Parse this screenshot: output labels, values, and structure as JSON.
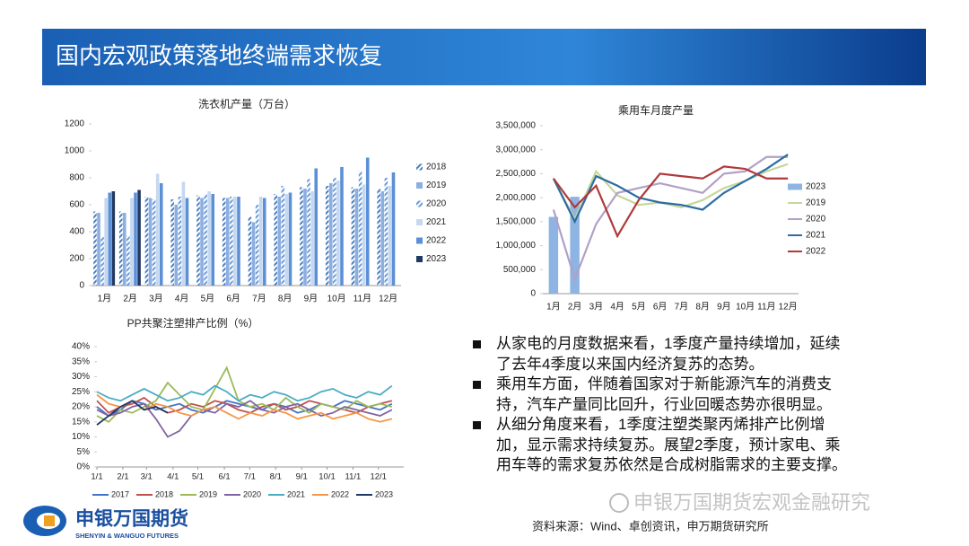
{
  "header": {
    "title": "国内宏观政策落地终端需求恢复"
  },
  "chart_data": [
    {
      "type": "bar",
      "title": "洗衣机产量（万台）",
      "categories": [
        "1月",
        "2月",
        "3月",
        "4月",
        "5月",
        "6月",
        "7月",
        "8月",
        "9月",
        "10月",
        "11月",
        "12月"
      ],
      "series": [
        {
          "name": "2018",
          "color": "#4a7fc0",
          "pattern": "hatch",
          "values": [
            550,
            550,
            660,
            640,
            670,
            650,
            510,
            680,
            730,
            740,
            730,
            720
          ]
        },
        {
          "name": "2019",
          "color": "#8eaee0",
          "values": [
            540,
            540,
            650,
            600,
            650,
            650,
            470,
            660,
            720,
            760,
            720,
            700
          ]
        },
        {
          "name": "2020",
          "color": "#6a9bd8",
          "pattern": "hatch",
          "values": [
            360,
            370,
            640,
            660,
            680,
            660,
            600,
            740,
            790,
            800,
            850,
            800
          ]
        },
        {
          "name": "2021",
          "color": "#c5d8f0",
          "values": [
            650,
            650,
            830,
            770,
            700,
            660,
            660,
            680,
            700,
            780,
            750,
            740
          ]
        },
        {
          "name": "2022",
          "color": "#5b8fd6",
          "values": [
            690,
            690,
            760,
            650,
            680,
            660,
            650,
            690,
            870,
            880,
            950,
            840
          ]
        },
        {
          "name": "2023",
          "color": "#1f3864",
          "values": [
            700,
            710,
            null,
            null,
            null,
            null,
            null,
            null,
            null,
            null,
            null,
            null
          ]
        }
      ],
      "ylim": [
        0,
        1200
      ],
      "yticks": [
        0,
        200,
        400,
        600,
        800,
        1000,
        1200
      ],
      "grid": false,
      "legend": "right"
    },
    {
      "type": "combo",
      "title": "乘用车月度产量",
      "categories": [
        "1月",
        "2月",
        "3月",
        "4月",
        "5月",
        "6月",
        "7月",
        "8月",
        "9月",
        "10月",
        "11月",
        "12月"
      ],
      "series": [
        {
          "name": "2023",
          "kind": "bar",
          "color": "#8db4e2",
          "values": [
            1600000,
            2020000,
            null,
            null,
            null,
            null,
            null,
            null,
            null,
            null,
            null,
            null
          ]
        },
        {
          "name": "2019",
          "kind": "line",
          "color": "#c4d79b",
          "values": [
            2400000,
            1550000,
            2550000,
            2050000,
            1850000,
            1900000,
            1800000,
            1950000,
            2200000,
            2350000,
            2550000,
            2700000
          ]
        },
        {
          "name": "2020",
          "kind": "line",
          "color": "#b1a0c7",
          "values": [
            1750000,
            300000,
            1450000,
            2100000,
            2200000,
            2300000,
            2200000,
            2100000,
            2500000,
            2550000,
            2850000,
            2850000
          ]
        },
        {
          "name": "2021",
          "kind": "line",
          "color": "#2e6ca4",
          "values": [
            2400000,
            1500000,
            2450000,
            2250000,
            2000000,
            1900000,
            1850000,
            1750000,
            2100000,
            2350000,
            2600000,
            2900000
          ]
        },
        {
          "name": "2022",
          "kind": "line",
          "color": "#b03a3a",
          "values": [
            2400000,
            1800000,
            2250000,
            1200000,
            1950000,
            2500000,
            2450000,
            2400000,
            2650000,
            2600000,
            2400000,
            2400000
          ]
        }
      ],
      "ylim": [
        0,
        3500000
      ],
      "yticks": [
        {
          "value": 0,
          "label": "0"
        },
        {
          "value": 500000,
          "label": "500,000"
        },
        {
          "value": 1000000,
          "label": "1,000,000"
        },
        {
          "value": 1500000,
          "label": "1,500,000"
        },
        {
          "value": 2000000,
          "label": "2,000,000"
        },
        {
          "value": 2500000,
          "label": "2,500,000"
        },
        {
          "value": 3000000,
          "label": "3,000,000"
        },
        {
          "value": 3500000,
          "label": "3,500,000"
        }
      ],
      "grid": false,
      "legend": "right"
    },
    {
      "type": "line",
      "title": "PP共聚注塑排产比例（%）",
      "x": [
        1,
        3,
        5,
        7,
        9,
        11,
        13,
        15,
        17,
        19,
        21,
        23,
        25,
        27,
        29,
        31,
        33,
        35,
        37,
        39,
        41,
        43,
        45,
        47,
        49,
        51
      ],
      "series": [
        {
          "name": "2017",
          "color": "#4472c4",
          "values": [
            20,
            17,
            19,
            22,
            21,
            19,
            20,
            21,
            19,
            18,
            20,
            22,
            21,
            20,
            19,
            21,
            20,
            18,
            19,
            21,
            20,
            22,
            21,
            20,
            19,
            21
          ]
        },
        {
          "name": "2018",
          "color": "#c0504d",
          "values": [
            22,
            18,
            20,
            21,
            23,
            20,
            18,
            19,
            21,
            20,
            22,
            21,
            19,
            18,
            20,
            21,
            19,
            20,
            22,
            21,
            20,
            19,
            18,
            20,
            21,
            22
          ]
        },
        {
          "name": "2019",
          "color": "#9bbb59",
          "values": [
            17,
            15,
            19,
            18,
            20,
            22,
            28,
            24,
            20,
            19,
            26,
            33,
            22,
            20,
            21,
            19,
            23,
            20,
            18,
            21,
            20,
            19,
            22,
            20,
            21,
            20
          ]
        },
        {
          "name": "2020",
          "color": "#8064a2",
          "values": [
            19,
            17,
            18,
            20,
            21,
            16,
            10,
            12,
            17,
            19,
            18,
            21,
            20,
            22,
            19,
            18,
            20,
            21,
            19,
            17,
            18,
            20,
            19,
            18,
            17,
            19
          ]
        },
        {
          "name": "2021",
          "color": "#4bacc6",
          "values": [
            25,
            23,
            22,
            24,
            26,
            24,
            22,
            23,
            25,
            24,
            27,
            25,
            22,
            24,
            23,
            25,
            24,
            22,
            23,
            25,
            26,
            24,
            23,
            25,
            24,
            27
          ]
        },
        {
          "name": "2022",
          "color": "#f79646",
          "values": [
            24,
            21,
            20,
            22,
            19,
            21,
            20,
            18,
            17,
            19,
            20,
            18,
            16,
            18,
            17,
            19,
            18,
            16,
            17,
            18,
            16,
            17,
            18,
            16,
            15,
            16
          ]
        },
        {
          "name": "2023",
          "color": "#1f3864",
          "values": [
            14,
            17,
            20,
            22,
            19,
            20,
            18,
            null,
            null,
            null,
            null,
            null,
            null,
            null,
            null,
            null,
            null,
            null,
            null,
            null,
            null,
            null,
            null,
            null,
            null,
            null
          ]
        }
      ],
      "xlim": [
        1,
        53
      ],
      "xticks": [
        {
          "value": 1,
          "label": "1/1"
        },
        {
          "value": 5.4,
          "label": "2/1"
        },
        {
          "value": 9.4,
          "label": "3/1"
        },
        {
          "value": 13.9,
          "label": "4/1"
        },
        {
          "value": 18.1,
          "label": "5/1"
        },
        {
          "value": 22.6,
          "label": "6/1"
        },
        {
          "value": 26.9,
          "label": "7/1"
        },
        {
          "value": 31.3,
          "label": "8/1"
        },
        {
          "value": 35.7,
          "label": "9/1"
        },
        {
          "value": 40,
          "label": "10/1"
        },
        {
          "value": 44.4,
          "label": "11/1"
        },
        {
          "value": 48.7,
          "label": "12/1"
        }
      ],
      "ylim": [
        0,
        40
      ],
      "yticks": [
        {
          "value": 0,
          "label": "0%"
        },
        {
          "value": 5,
          "label": "5%"
        },
        {
          "value": 10,
          "label": "10%"
        },
        {
          "value": 15,
          "label": "15%"
        },
        {
          "value": 20,
          "label": "20%"
        },
        {
          "value": 25,
          "label": "25%"
        },
        {
          "value": 30,
          "label": "30%"
        },
        {
          "value": 35,
          "label": "35%"
        },
        {
          "value": 40,
          "label": "40%"
        }
      ],
      "grid": false,
      "legend": "bottom"
    }
  ],
  "bullets": [
    "从家电的月度数据来看，1季度产量持续增加，延续了去年4季度以来国内经济复苏的态势。",
    "乘用车方面，伴随着国家对于新能源汽车的消费支持，汽车产量同比回升，行业回暖态势亦很明显。",
    "从细分角度来看，1季度注塑类聚丙烯排产比例增加，显示需求持续复苏。展望2季度，预计家电、乘用车等的需求复苏依然是合成树脂需求的主要支撑。"
  ],
  "source": "资料来源：Wind、卓创资讯，申万期货研究所",
  "logo": {
    "name": "申银万国期货",
    "english": "SHENYIN & WANGUO FUTURES"
  },
  "watermark": "申银万国期货宏观金融研究"
}
